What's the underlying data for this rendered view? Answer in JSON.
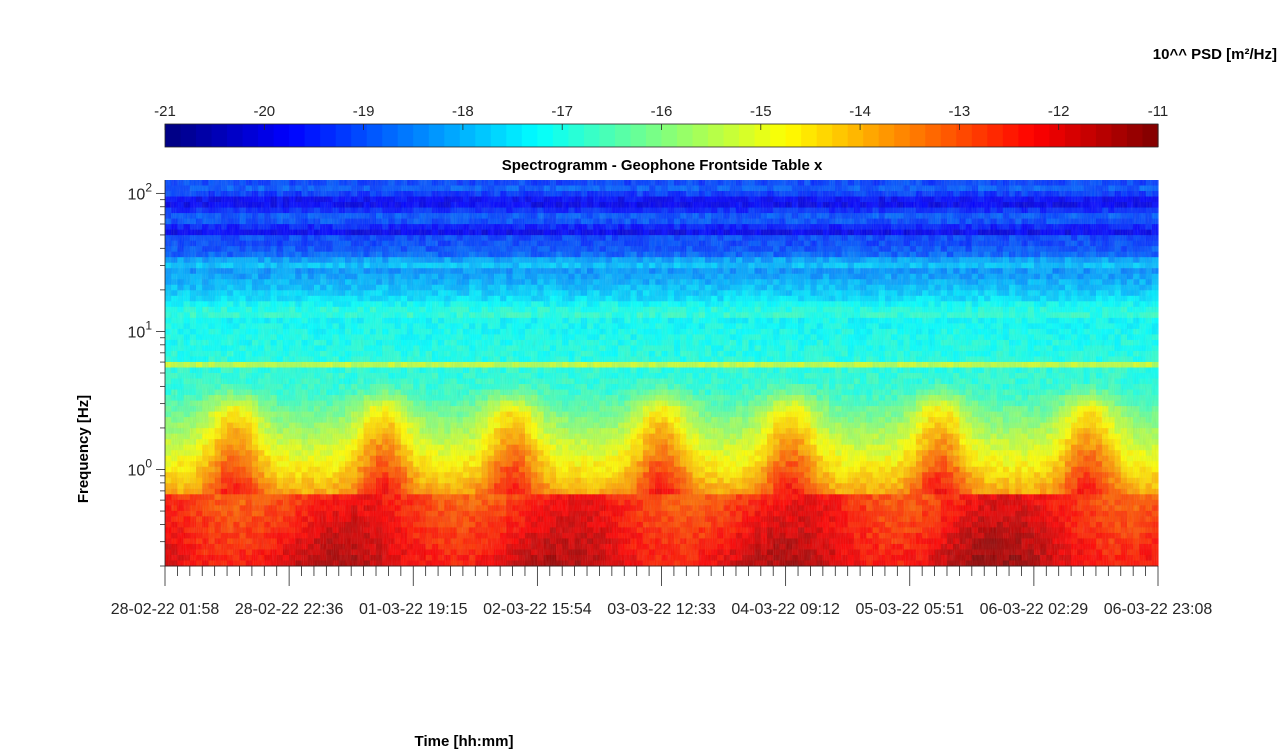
{
  "chart_data": {
    "type": "heatmap",
    "title": "Spectrogramm - Geophone Frontside Table x",
    "xlabel": "Time [hh:mm]",
    "ylabel": "Frequency [Hz]",
    "colorbar_label": "10^^ PSD [m²/Hz]",
    "colormap": "jet",
    "colorbar_range": [
      -21,
      -11
    ],
    "colorbar_ticks": [
      "-21",
      "-20",
      "-19",
      "-18",
      "-17",
      "-16",
      "-15",
      "-14",
      "-13",
      "-12",
      "-11"
    ],
    "y_scale": "log",
    "ylim": [
      0.2,
      125
    ],
    "y_major_ticks": [
      1,
      10,
      100
    ],
    "x_tick_labels": [
      "28-02-22  01:58",
      "28-02-22  22:36",
      "01-03-22  19:15",
      "02-03-22  15:54",
      "03-03-22  12:33",
      "04-03-22  09:12",
      "05-03-22  05:51",
      "06-03-22  02:29",
      "06-03-22  23:08"
    ],
    "xlim": [
      "28-02-22 01:58",
      "06-03-22 23:08"
    ],
    "grid": false,
    "legend": "colorbar-top"
  }
}
